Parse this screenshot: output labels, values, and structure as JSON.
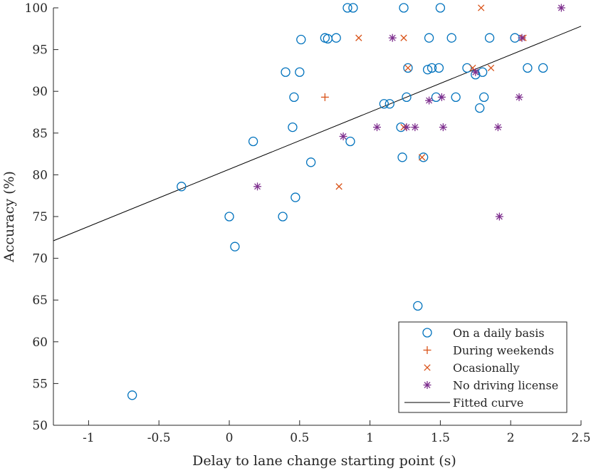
{
  "chart_data": {
    "type": "scatter",
    "title": "",
    "xlabel": "Delay to lane change starting point (s)",
    "ylabel": "Accuracy (%)",
    "xlim": [
      -1.25,
      2.5
    ],
    "ylim": [
      50,
      100
    ],
    "xticks": [
      -1,
      -0.5,
      0,
      0.5,
      1,
      1.5,
      2,
      2.5
    ],
    "xtick_labels": [
      "-1",
      "-0.5",
      "0",
      "0.5",
      "1",
      "1.5",
      "2",
      "2.5"
    ],
    "yticks": [
      50,
      55,
      60,
      65,
      70,
      75,
      80,
      85,
      90,
      95,
      100
    ],
    "ytick_labels": [
      "50",
      "55",
      "60",
      "65",
      "70",
      "75",
      "80",
      "85",
      "90",
      "95",
      "100"
    ],
    "grid": false,
    "legend_position": "bottom-right",
    "colors": {
      "daily": "#0072BD",
      "weekends": "#D95319",
      "occasionally": "#D95319",
      "no_license": "#7E2F8E",
      "fit": "#000000",
      "axis": "#262626"
    },
    "series": [
      {
        "name": "On a daily basis",
        "key": "daily",
        "marker": "circle",
        "points": [
          [
            -0.69,
            53.6
          ],
          [
            -0.34,
            78.6
          ],
          [
            0.0,
            75.0
          ],
          [
            0.04,
            71.4
          ],
          [
            0.17,
            84.0
          ],
          [
            0.38,
            75.0
          ],
          [
            0.4,
            92.3
          ],
          [
            0.45,
            85.7
          ],
          [
            0.46,
            89.3
          ],
          [
            0.47,
            77.3
          ],
          [
            0.5,
            92.3
          ],
          [
            0.51,
            96.2
          ],
          [
            0.58,
            81.5
          ],
          [
            0.68,
            96.4
          ],
          [
            0.7,
            96.3
          ],
          [
            0.76,
            96.4
          ],
          [
            0.84,
            100.0
          ],
          [
            0.86,
            84.0
          ],
          [
            0.88,
            100.0
          ],
          [
            1.1,
            88.5
          ],
          [
            1.14,
            88.5
          ],
          [
            1.22,
            85.7
          ],
          [
            1.23,
            82.1
          ],
          [
            1.24,
            100.0
          ],
          [
            1.26,
            89.3
          ],
          [
            1.27,
            92.8
          ],
          [
            1.34,
            64.3
          ],
          [
            1.38,
            82.1
          ],
          [
            1.41,
            92.6
          ],
          [
            1.42,
            96.4
          ],
          [
            1.44,
            92.8
          ],
          [
            1.47,
            89.3
          ],
          [
            1.49,
            92.8
          ],
          [
            1.5,
            100.0
          ],
          [
            1.58,
            96.4
          ],
          [
            1.61,
            89.3
          ],
          [
            1.69,
            92.8
          ],
          [
            1.75,
            92.0
          ],
          [
            1.78,
            88.0
          ],
          [
            1.8,
            92.3
          ],
          [
            1.81,
            89.3
          ],
          [
            1.85,
            96.4
          ],
          [
            2.03,
            96.4
          ],
          [
            2.12,
            92.8
          ],
          [
            2.23,
            92.8
          ]
        ]
      },
      {
        "name": "During weekends",
        "key": "weekends",
        "marker": "plus",
        "points": [
          [
            0.68,
            89.3
          ]
        ]
      },
      {
        "name": "Ocasionally",
        "key": "occasionally",
        "marker": "x",
        "points": [
          [
            0.78,
            78.6
          ],
          [
            0.92,
            96.4
          ],
          [
            1.24,
            96.4
          ],
          [
            1.24,
            85.7
          ],
          [
            1.27,
            92.8
          ],
          [
            1.37,
            82.1
          ],
          [
            1.73,
            92.8
          ],
          [
            1.79,
            100.0
          ],
          [
            1.86,
            92.8
          ],
          [
            2.09,
            96.4
          ]
        ]
      },
      {
        "name": "No driving license",
        "key": "no_license",
        "marker": "asterisk",
        "points": [
          [
            0.2,
            78.6
          ],
          [
            0.81,
            84.6
          ],
          [
            1.05,
            85.7
          ],
          [
            1.16,
            96.4
          ],
          [
            1.26,
            85.7
          ],
          [
            1.32,
            85.7
          ],
          [
            1.42,
            88.9
          ],
          [
            1.51,
            89.3
          ],
          [
            1.52,
            85.7
          ],
          [
            1.75,
            92.3
          ],
          [
            1.91,
            85.7
          ],
          [
            1.92,
            75.0
          ],
          [
            2.06,
            89.3
          ],
          [
            2.08,
            96.4
          ],
          [
            2.36,
            100.0
          ]
        ]
      }
    ],
    "fitted_curve": {
      "name": "Fitted curve",
      "key": "fit",
      "x": [
        -1.25,
        2.5
      ],
      "y": [
        72.1,
        97.8
      ]
    }
  }
}
